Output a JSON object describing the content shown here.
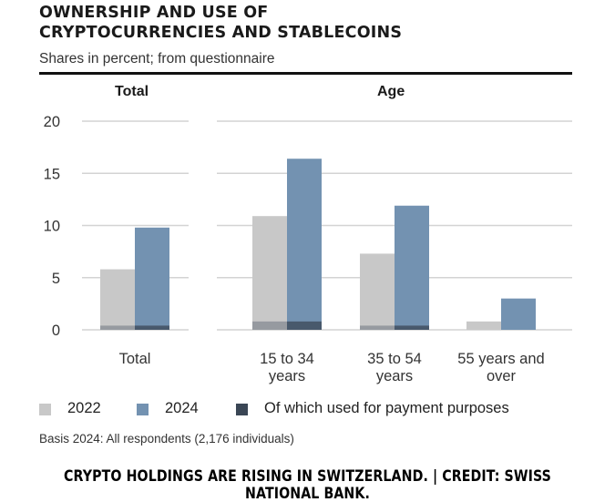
{
  "title_line1": "OWNERSHIP AND USE OF",
  "title_line2": "CRYPTOCURRENCIES AND STABLECOINS",
  "subtitle": "Shares in percent; from questionnaire",
  "panels": {
    "total": "Total",
    "age": "Age"
  },
  "legend": {
    "s2022": "2022",
    "s2024": "2024",
    "payment": "Of which used for payment purposes"
  },
  "basis": "Basis 2024: All respondents (2,176 individuals)",
  "credit": "CRYPTO HOLDINGS ARE RISING IN SWITZERLAND.  |  CREDIT: SWISS NATIONAL BANK.",
  "colors": {
    "c2022": "#c8c8c8",
    "c2024": "#7392b1",
    "payment": "#3a4655",
    "grid": "#d3d3d3"
  },
  "chart_data": {
    "type": "bar",
    "ylim": [
      0,
      20
    ],
    "yticks": [
      0,
      5,
      10,
      15,
      20
    ],
    "categories": [
      {
        "lines": [
          "Total"
        ]
      },
      {
        "lines": [
          "15 to 34",
          "years"
        ]
      },
      {
        "lines": [
          "35 to 54",
          "years"
        ]
      },
      {
        "lines": [
          "55 years and",
          "over"
        ]
      }
    ],
    "series": [
      {
        "name": "2022",
        "values": [
          5.8,
          10.9,
          7.3,
          0.8
        ],
        "payment": [
          0.4,
          0.8,
          0.4,
          0.0
        ]
      },
      {
        "name": "2024",
        "values": [
          9.8,
          16.4,
          11.9,
          3.0
        ],
        "payment": [
          0.4,
          0.8,
          0.4,
          0.0
        ]
      }
    ]
  }
}
